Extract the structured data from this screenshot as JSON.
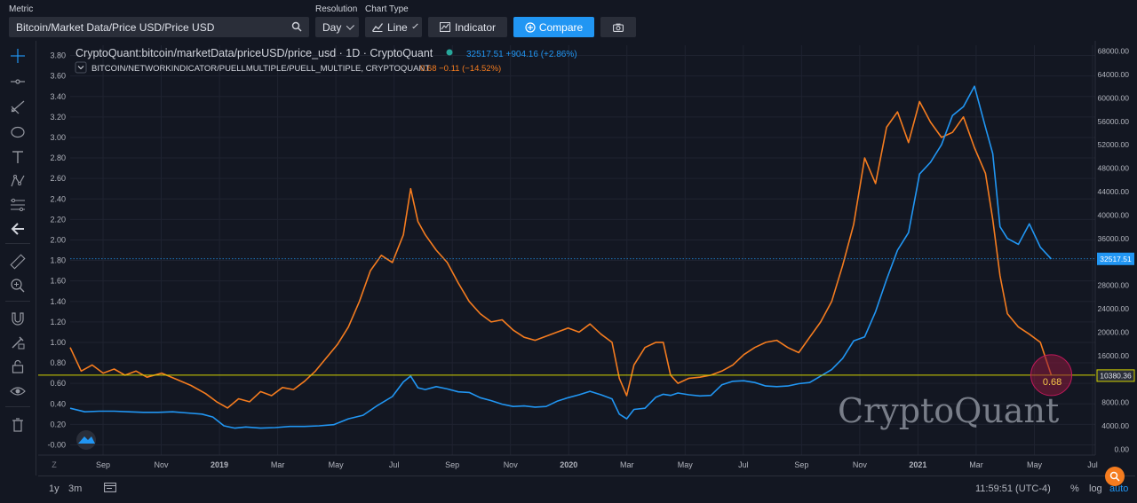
{
  "toolbar": {
    "metric_label": "Metric",
    "metric_value": "Bitcoin/Market Data/Price USD/Price USD",
    "resolution_label": "Resolution",
    "resolution_value": "Day",
    "chart_type_label": "Chart Type",
    "chart_type_value": "Line",
    "indicator_label": "Indicator",
    "compare_label": "Compare",
    "icons": [
      "search-icon",
      "line-chart-icon",
      "indicator-icon",
      "plus-circle-icon",
      "camera-icon"
    ]
  },
  "left_toolbar": {
    "tools": [
      "crosshair-icon",
      "horizontal-line-icon",
      "trend-tools-icon",
      "shapes-icon",
      "text-icon",
      "pattern-icon",
      "fib-icon",
      "back-arrow-icon",
      "ruler-icon",
      "zoom-in-icon",
      "magnet-icon",
      "lock-drawing-icon",
      "lock-icon",
      "eye-icon",
      "trash-icon"
    ]
  },
  "legend": {
    "main_title": "CryptoQuant:bitcoin/marketData/priceUSD/price_usd · 1D · CryptoQuant",
    "main_values": "32517.51 +904.16 (+2.86%)",
    "second_title": "BITCOIN/NETWORKINDICATOR/PUELLMULTIPLE/PUELL_MULTIPLE, CRYPTOQUANT",
    "second_values": "0.68 −0.11 (−14.52%)"
  },
  "watermark": "CryptoQuant",
  "bottom": {
    "range_1y": "1y",
    "range_3m": "3m",
    "time": "11:59:51 (UTC-4)",
    "percent": "%",
    "log": "log",
    "auto": "auto",
    "z_label": "Z"
  },
  "colors": {
    "background": "#131722",
    "price": "#2196f3",
    "puell": "#f57c1f",
    "hline": "#d4d400",
    "accent": "#2196f3"
  },
  "chart_data": {
    "type": "line",
    "x_labels": [
      "Sep",
      "Nov",
      "2019",
      "Mar",
      "May",
      "Jul",
      "Sep",
      "Nov",
      "2020",
      "Mar",
      "May",
      "Jul",
      "Sep",
      "Nov",
      "2021",
      "Mar",
      "May",
      "Jul"
    ],
    "left_axis": {
      "ticks": [
        "3.80",
        "3.60",
        "3.40",
        "3.20",
        "3.00",
        "2.80",
        "2.60",
        "2.40",
        "2.20",
        "2.00",
        "1.80",
        "1.60",
        "1.40",
        "1.20",
        "1.00",
        "0.80",
        "0.60",
        "0.40",
        "0.20",
        "-0.00"
      ],
      "range": [
        -0.1,
        3.9
      ]
    },
    "right_axis": {
      "ticks": [
        "68000.00",
        "64000.00",
        "60000.00",
        "56000.00",
        "52000.00",
        "48000.00",
        "44000.00",
        "40000.00",
        "36000.00",
        "32000.00",
        "28000.00",
        "24000.00",
        "20000.00",
        "16000.00",
        "12000.00",
        "8000.00",
        "4000.00",
        "0.00"
      ],
      "range": [
        -1000,
        69000
      ]
    },
    "series": [
      {
        "name": "BITCOIN/NETWORKINDICATOR/PUELLMULTIPLE/PUELL_MULTIPLE",
        "axis": "left",
        "points": [
          [
            0,
            0.95
          ],
          [
            3,
            0.72
          ],
          [
            6,
            0.78
          ],
          [
            9,
            0.7
          ],
          [
            12,
            0.74
          ],
          [
            15,
            0.68
          ],
          [
            18,
            0.72
          ],
          [
            21,
            0.66
          ],
          [
            25,
            0.7
          ],
          [
            29,
            0.64
          ],
          [
            33,
            0.58
          ],
          [
            37,
            0.5
          ],
          [
            40,
            0.42
          ],
          [
            43,
            0.36
          ],
          [
            46,
            0.45
          ],
          [
            49,
            0.42
          ],
          [
            52,
            0.52
          ],
          [
            55,
            0.48
          ],
          [
            58,
            0.56
          ],
          [
            61,
            0.54
          ],
          [
            64,
            0.62
          ],
          [
            67,
            0.72
          ],
          [
            70,
            0.85
          ],
          [
            73,
            0.98
          ],
          [
            76,
            1.15
          ],
          [
            79,
            1.4
          ],
          [
            82,
            1.7
          ],
          [
            85,
            1.85
          ],
          [
            88,
            1.78
          ],
          [
            91,
            2.05
          ],
          [
            93,
            2.5
          ],
          [
            95,
            2.18
          ],
          [
            97,
            2.05
          ],
          [
            100,
            1.9
          ],
          [
            103,
            1.78
          ],
          [
            106,
            1.58
          ],
          [
            109,
            1.4
          ],
          [
            112,
            1.28
          ],
          [
            115,
            1.2
          ],
          [
            118,
            1.22
          ],
          [
            121,
            1.12
          ],
          [
            124,
            1.05
          ],
          [
            127,
            1.02
          ],
          [
            130,
            1.06
          ],
          [
            133,
            1.1
          ],
          [
            136,
            1.14
          ],
          [
            139,
            1.1
          ],
          [
            142,
            1.18
          ],
          [
            145,
            1.08
          ],
          [
            148,
            1.0
          ],
          [
            150,
            0.65
          ],
          [
            152,
            0.48
          ],
          [
            154,
            0.78
          ],
          [
            157,
            0.95
          ],
          [
            160,
            1.0
          ],
          [
            162,
            1.0
          ],
          [
            164,
            0.68
          ],
          [
            166,
            0.6
          ],
          [
            169,
            0.65
          ],
          [
            172,
            0.66
          ],
          [
            175,
            0.68
          ],
          [
            178,
            0.72
          ],
          [
            181,
            0.78
          ],
          [
            184,
            0.88
          ],
          [
            187,
            0.95
          ],
          [
            190,
            1.0
          ],
          [
            193,
            1.02
          ],
          [
            196,
            0.95
          ],
          [
            199,
            0.9
          ],
          [
            202,
            1.05
          ],
          [
            205,
            1.2
          ],
          [
            208,
            1.4
          ],
          [
            211,
            1.75
          ],
          [
            214,
            2.15
          ],
          [
            217,
            2.8
          ],
          [
            220,
            2.55
          ],
          [
            223,
            3.1
          ],
          [
            226,
            3.25
          ],
          [
            229,
            2.95
          ],
          [
            232,
            3.35
          ],
          [
            235,
            3.15
          ],
          [
            238,
            3.0
          ],
          [
            241,
            3.05
          ],
          [
            244,
            3.2
          ],
          [
            247,
            2.9
          ],
          [
            250,
            2.65
          ],
          [
            252,
            2.2
          ],
          [
            254,
            1.65
          ],
          [
            256,
            1.28
          ],
          [
            259,
            1.15
          ],
          [
            262,
            1.08
          ],
          [
            265,
            1.0
          ],
          [
            268,
            0.68
          ]
        ]
      },
      {
        "name": "CryptoQuant:bitcoin/marketData/priceUSD/price_usd",
        "axis": "right",
        "points": [
          [
            0,
            7000
          ],
          [
            4,
            6400
          ],
          [
            8,
            6500
          ],
          [
            12,
            6500
          ],
          [
            16,
            6400
          ],
          [
            20,
            6300
          ],
          [
            24,
            6300
          ],
          [
            28,
            6400
          ],
          [
            32,
            6200
          ],
          [
            36,
            6000
          ],
          [
            39,
            5500
          ],
          [
            42,
            4000
          ],
          [
            45,
            3600
          ],
          [
            48,
            3800
          ],
          [
            52,
            3600
          ],
          [
            56,
            3700
          ],
          [
            60,
            3900
          ],
          [
            64,
            3900
          ],
          [
            68,
            4000
          ],
          [
            72,
            4200
          ],
          [
            76,
            5200
          ],
          [
            80,
            5800
          ],
          [
            84,
            7500
          ],
          [
            88,
            9000
          ],
          [
            91,
            11500
          ],
          [
            93,
            12500
          ],
          [
            95,
            10500
          ],
          [
            97,
            10200
          ],
          [
            100,
            10700
          ],
          [
            103,
            10300
          ],
          [
            106,
            9800
          ],
          [
            109,
            9700
          ],
          [
            112,
            8800
          ],
          [
            115,
            8300
          ],
          [
            118,
            7700
          ],
          [
            121,
            7300
          ],
          [
            124,
            7400
          ],
          [
            127,
            7200
          ],
          [
            130,
            7300
          ],
          [
            133,
            8200
          ],
          [
            136,
            8800
          ],
          [
            139,
            9300
          ],
          [
            142,
            9900
          ],
          [
            145,
            9300
          ],
          [
            148,
            8600
          ],
          [
            150,
            6000
          ],
          [
            152,
            5200
          ],
          [
            154,
            6800
          ],
          [
            157,
            7000
          ],
          [
            160,
            8900
          ],
          [
            162,
            9400
          ],
          [
            164,
            9200
          ],
          [
            166,
            9600
          ],
          [
            169,
            9300
          ],
          [
            172,
            9100
          ],
          [
            175,
            9200
          ],
          [
            178,
            11000
          ],
          [
            181,
            11600
          ],
          [
            184,
            11700
          ],
          [
            187,
            11400
          ],
          [
            190,
            10800
          ],
          [
            193,
            10700
          ],
          [
            196,
            10800
          ],
          [
            199,
            11200
          ],
          [
            202,
            11400
          ],
          [
            205,
            12500
          ],
          [
            208,
            13600
          ],
          [
            211,
            15500
          ],
          [
            214,
            18500
          ],
          [
            217,
            19200
          ],
          [
            220,
            23500
          ],
          [
            223,
            29000
          ],
          [
            226,
            34000
          ],
          [
            229,
            37000
          ],
          [
            232,
            47000
          ],
          [
            235,
            49000
          ],
          [
            238,
            52000
          ],
          [
            241,
            57000
          ],
          [
            244,
            58500
          ],
          [
            247,
            62000
          ],
          [
            250,
            55000
          ],
          [
            252,
            50500
          ],
          [
            254,
            38000
          ],
          [
            256,
            36000
          ],
          [
            259,
            35000
          ],
          [
            262,
            38500
          ],
          [
            265,
            34500
          ],
          [
            268,
            32500
          ]
        ]
      }
    ],
    "hline_values": {
      "left": 0.68,
      "right": 10380.36
    },
    "price_hline_value": 32517.51,
    "last_values": {
      "puell": "0.68",
      "price": "32517.51",
      "hline": "10380.36"
    }
  }
}
